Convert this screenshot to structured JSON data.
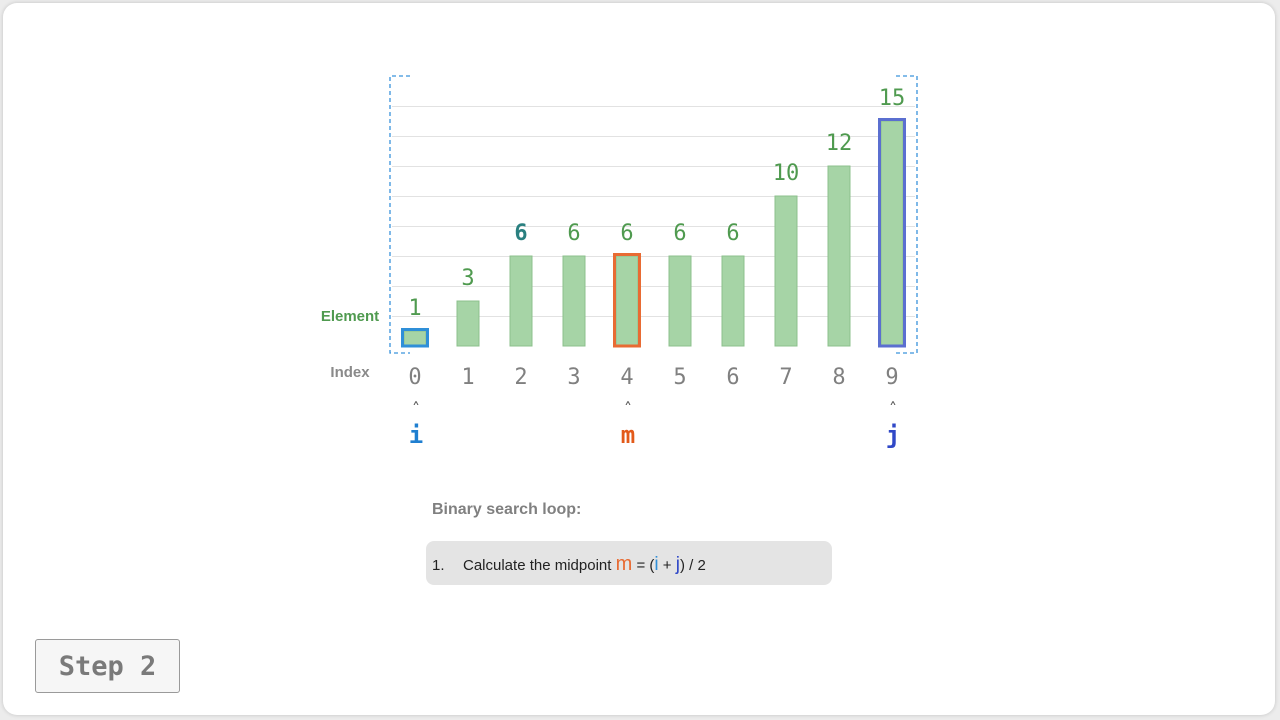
{
  "chart_data": {
    "type": "bar",
    "categories": [
      "0",
      "1",
      "2",
      "3",
      "4",
      "5",
      "6",
      "7",
      "8",
      "9"
    ],
    "values": [
      1,
      3,
      6,
      6,
      6,
      6,
      6,
      10,
      12,
      15
    ],
    "row_labels": {
      "element": "Element",
      "index": "Index"
    },
    "ylim": [
      0,
      16
    ],
    "gridlines": true,
    "highlights": [
      {
        "index": 0,
        "role": "i",
        "color": "#2f8fd8"
      },
      {
        "index": 4,
        "role": "m",
        "color": "#e86b33"
      },
      {
        "index": 9,
        "role": "j",
        "color": "#5b6fd0"
      }
    ],
    "emphasized_value_index": 2,
    "pointers": [
      {
        "label": "i",
        "index": 0,
        "color": "#1f7fd0"
      },
      {
        "label": "m",
        "index": 4,
        "color": "#e35a1a"
      },
      {
        "label": "j",
        "index": 9,
        "color": "#3048c7"
      }
    ],
    "pointer_arrow": "˄"
  },
  "colors": {
    "bar_fill": "#a6d4a6",
    "bar_stroke": "#8cc08c",
    "value_text": "#4f9a4f",
    "emphasized_value_text": "#2a8080",
    "index_text": "#808080",
    "bracket": "#3a93dc"
  },
  "loop": {
    "title": "Binary search loop:",
    "step_number": "1.",
    "step_text": "Calculate the midpoint",
    "formula": {
      "m": "m",
      "eq": "= (",
      "i": "i",
      "plus": "+",
      "j": "j",
      "tail": ") / 2"
    }
  },
  "step_button": {
    "label": "Step 2"
  }
}
